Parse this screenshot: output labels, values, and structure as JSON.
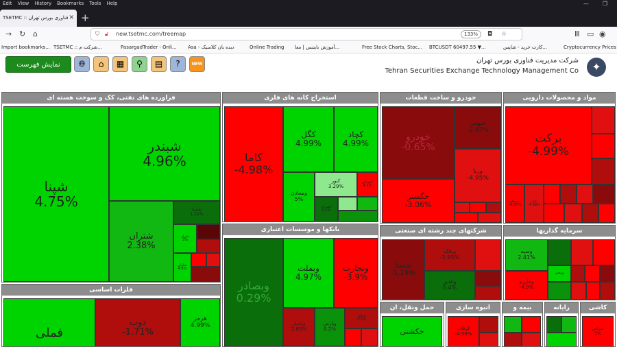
{
  "browser": {
    "menu": [
      "Edit",
      "View",
      "History",
      "Bookmarks",
      "Tools",
      "Help"
    ],
    "tab_title": "TSETMC :: فناوری بورس تهران",
    "url": "new.tsetmc.com/treemap",
    "zoom": "133%",
    "bookmarks": [
      "Import bookmarks...",
      "TSETMC :: شرکت م...",
      "PasargadTrader - Onli...",
      "Asa - دیده بان کلاسیک",
      "Online Trading",
      "آموزش بایننس | معا...",
      "Free Stock Charts, Stoc...",
      "BTCUSDT 60497.55 ▼...",
      "کارت خرید - شاپس...",
      "Cryptocurrency Prices"
    ]
  },
  "header": {
    "show_list": "نمایش فهرست",
    "company_fa": "شرکت مدیریت فناوری بورس تهران",
    "company_en": "Tehran Securities Exchange Technology Management Co"
  },
  "icons": {
    "globe": "globe-icon",
    "home": "home-icon",
    "table": "table-icon",
    "search": "search-icon",
    "chat": "chat-icon",
    "help": "help-icon",
    "new": "NEW"
  },
  "colors": {
    "strong_green": "#00d400",
    "dark_green": "#0a6e0a",
    "strong_red": "#ff0000",
    "dark_red": "#8a0b0b",
    "sector_header": "#8d8d8d",
    "show_list_bg": "#1d8a1d"
  },
  "sectors": {
    "petroleum": {
      "title": "فراورده های نفتی، کک و سوخت هسته ای",
      "cells": [
        {
          "name": "شپنا",
          "pct": "4.75%"
        },
        {
          "name": "شبندر",
          "pct": "4.96%"
        },
        {
          "name": "شتران",
          "pct": "2.38%"
        },
        {
          "name": "شسپا",
          "pct": "1.22%"
        },
        {
          "name": "شراز",
          "pct": "3%"
        },
        {
          "name": "شاوان",
          "pct": "4.9%"
        }
      ]
    },
    "mining": {
      "title": "استخراج کانه های فلزی",
      "cells": [
        {
          "name": "کاما",
          "pct": "-4.98%"
        },
        {
          "name": "کگل",
          "pct": "4.99%"
        },
        {
          "name": "کچاد",
          "pct": "4.99%"
        },
        {
          "name": "ومعادن",
          "pct": "5%"
        },
        {
          "name": "کنور",
          "pct": "3.29%"
        },
        {
          "name": "کمرجان",
          "pct": "4.1%"
        },
        {
          "name": "کسرام",
          "pct": "0.1%"
        }
      ]
    },
    "auto": {
      "title": "خودرو و ساخت قطعات",
      "cells": [
        {
          "name": "خودرو",
          "pct": "-0.65%"
        },
        {
          "name": "خبهمن",
          "pct": "-2.87%"
        },
        {
          "name": "ورنا",
          "pct": "-4.95%"
        },
        {
          "name": "خگستر",
          "pct": "-3.06%"
        }
      ]
    },
    "pharma": {
      "title": "مواد و محصولات دارویی",
      "cells": [
        {
          "name": "برکت",
          "pct": "-4.99%"
        },
        {
          "name": "دسبحان",
          "pct": "-4.97%"
        },
        {
          "name": "دفارا",
          "pct": "-4.98%"
        }
      ]
    },
    "banks": {
      "title": "بانکها و موسسات اعتباری",
      "cells": [
        {
          "name": "وبصادر",
          "pct": "0.29%"
        },
        {
          "name": "وبملت",
          "pct": "4.97%"
        },
        {
          "name": "وتجارت",
          "pct": "-3.9%"
        },
        {
          "name": "وپاسار",
          "pct": "2.85%"
        },
        {
          "name": "وپارس",
          "pct": "0.2%"
        },
        {
          "name": "وخاور",
          "pct": "-4.1%"
        }
      ]
    },
    "multi": {
      "title": "شرکتهای چند رشته ای صنعتی",
      "cells": [
        {
          "name": "شستا",
          "pct": "-1.19%"
        },
        {
          "name": "وبانک",
          "pct": "-2.95%"
        },
        {
          "name": "وغدیر",
          "pct": "0.4%"
        }
      ]
    },
    "invest": {
      "title": "سرمایه گذاریها",
      "cells": [
        {
          "name": "وسپه",
          "pct": "2.41%"
        },
        {
          "name": "وخارزم",
          "pct": "-4.9%"
        },
        {
          "name": "ومعین",
          "pct": ""
        }
      ]
    },
    "metals": {
      "title": "فلزات اساسی",
      "cells": [
        {
          "name": "فملی",
          "pct": ""
        },
        {
          "name": "ذوب",
          "pct": "-1.71%"
        },
        {
          "name": "هرمز",
          "pct": "4.99%"
        }
      ]
    },
    "transport": {
      "title": "حمل ونقل، ان",
      "cells": [
        {
          "name": "حکشتی",
          "pct": ""
        }
      ]
    },
    "construction": {
      "title": "انبوه سازی",
      "cells": [
        {
          "name": "کرفاب",
          "pct": "-4.59%"
        }
      ]
    },
    "insurance": {
      "title": "بیمه و"
    },
    "computer": {
      "title": "رایانه"
    },
    "ceramic": {
      "title": "کاشی",
      "cells": [
        {
          "name": "سراس",
          "pct": "5%"
        }
      ]
    }
  }
}
